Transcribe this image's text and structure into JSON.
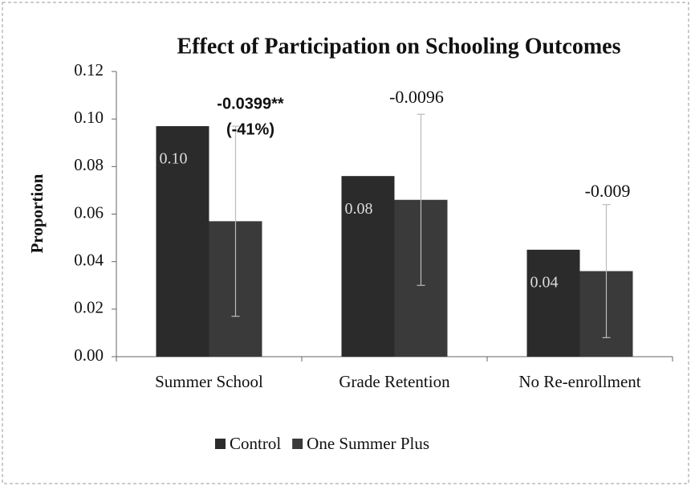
{
  "chart_data": {
    "type": "bar",
    "title": "Effect of Participation on Schooling Outcomes",
    "y_label": "Proportion",
    "categories": [
      "Summer School",
      "Grade Retention",
      "No Re-enrollment"
    ],
    "series": [
      {
        "name": "Control",
        "color": "#2b2b2b",
        "values": [
          0.097,
          0.076,
          0.045
        ],
        "value_labels": [
          "0.10",
          "0.08",
          "0.04"
        ]
      },
      {
        "name": "One Summer Plus",
        "color": "#3a3a3a",
        "values": [
          0.057,
          0.066,
          0.036
        ],
        "errors": [
          0.04,
          0.036,
          0.028
        ]
      }
    ],
    "annotations": [
      "-0.0399**",
      "(-41%)",
      "-0.0096",
      "-0.009"
    ],
    "ylim": [
      0,
      0.12
    ],
    "yticks": [
      {
        "value": 0,
        "label": "0.00"
      },
      {
        "value": 0.02,
        "label": "0.02"
      },
      {
        "value": 0.04,
        "label": "0.04"
      },
      {
        "value": 0.06,
        "label": "0.06"
      },
      {
        "value": 0.08,
        "label": "0.08"
      },
      {
        "value": 0.1,
        "label": "0.10"
      },
      {
        "value": 0.12,
        "label": "0.12"
      }
    ]
  }
}
